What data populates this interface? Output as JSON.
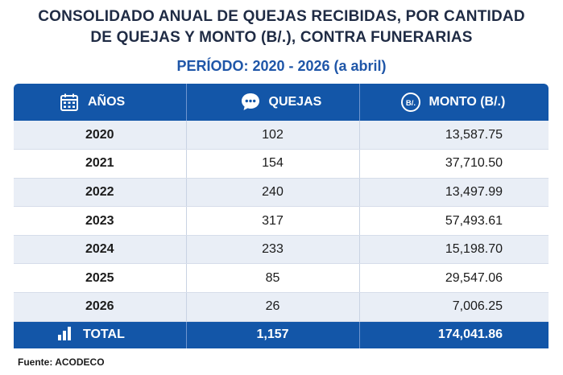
{
  "title": {
    "line1": "CONSOLIDADO ANUAL DE QUEJAS RECIBIDAS, POR CANTIDAD",
    "line2": "DE QUEJAS Y MONTO (B/.), CONTRA FUNERARIAS"
  },
  "subtitle": "PERÍODO: 2020 - 2026 (a abril)",
  "colors": {
    "header_bg": "#1356a8",
    "row_alt": "#e9eef6",
    "title": "#1f2b44",
    "subtitle": "#1f56a8"
  },
  "table": {
    "headers": [
      {
        "label": "AÑOS",
        "icon": "calendar-icon"
      },
      {
        "label": "QUEJAS",
        "icon": "chat-bubble-icon"
      },
      {
        "label": "MONTO (B/.)",
        "icon": "balboa-currency-icon",
        "icon_text": "B/."
      }
    ],
    "rows": [
      {
        "year": "2020",
        "quejas": "102",
        "monto": "13,587.75"
      },
      {
        "year": "2021",
        "quejas": "154",
        "monto": "37,710.50"
      },
      {
        "year": "2022",
        "quejas": "240",
        "monto": "13,497.99"
      },
      {
        "year": "2023",
        "quejas": "317",
        "monto": "57,493.61"
      },
      {
        "year": "2024",
        "quejas": "233",
        "monto": "15,198.70"
      },
      {
        "year": "2025",
        "quejas": "85",
        "monto": "29,547.06"
      },
      {
        "year": "2026",
        "quejas": "26",
        "monto": "7,006.25"
      }
    ],
    "total": {
      "label": "TOTAL",
      "icon": "bar-chart-icon",
      "quejas": "1,157",
      "monto": "174,041.86"
    }
  },
  "source": "Fuente: ACODECO"
}
